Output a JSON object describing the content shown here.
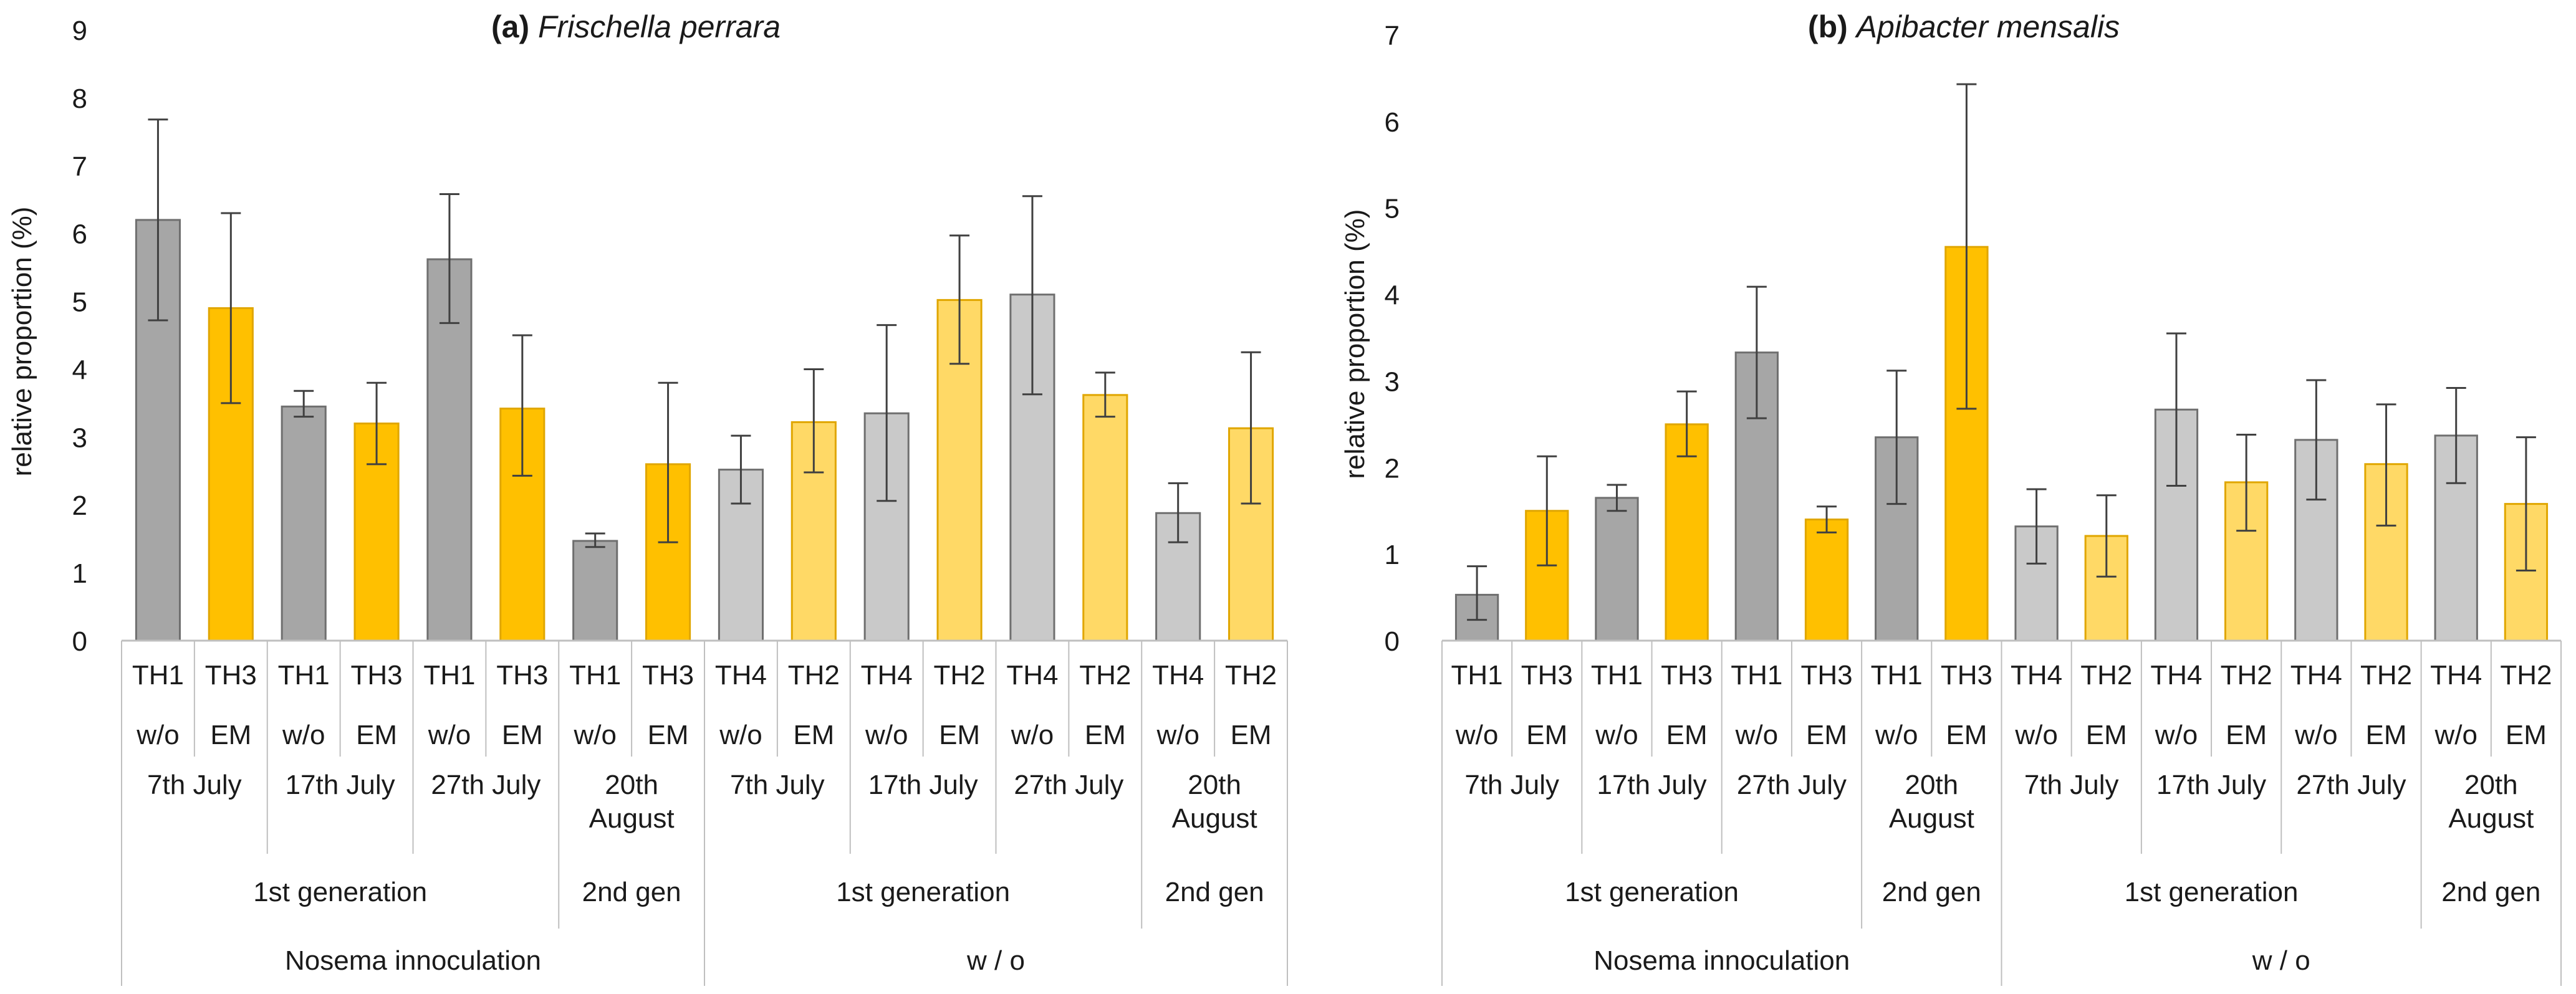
{
  "chart_data": [
    {
      "type": "bar",
      "panel_label": "(a)",
      "title": "Frischella perrara",
      "ylabel": "relative  proportion  (%)",
      "ylim": [
        0,
        9
      ],
      "yticks": [
        "0",
        "1",
        "2",
        "3",
        "4",
        "5",
        "6",
        "7",
        "8",
        "9"
      ],
      "grid": false,
      "levels": {
        "hive": [
          "TH1",
          "TH3",
          "TH1",
          "TH3",
          "TH1",
          "TH3",
          "TH1",
          "TH3",
          "TH4",
          "TH2",
          "TH4",
          "TH2",
          "TH4",
          "TH2",
          "TH4",
          "TH2"
        ],
        "treatment": [
          "w/o",
          "EM",
          "w/o",
          "EM",
          "w/o",
          "EM",
          "w/o",
          "EM",
          "w/o",
          "EM",
          "w/o",
          "EM",
          "w/o",
          "EM",
          "w/o",
          "EM"
        ],
        "date": [
          {
            "label": "7th July"
          },
          {
            "label": "17th July"
          },
          {
            "label": "27th July"
          },
          {
            "label": "20th\nAugust"
          },
          {
            "label": "7th July"
          },
          {
            "label": "17th July"
          },
          {
            "label": "27th July"
          },
          {
            "label": "20th\nAugust"
          }
        ],
        "generation": [
          {
            "label": "1st generation"
          },
          {
            "label": "2nd gen"
          },
          {
            "label": "1st generation"
          },
          {
            "label": "2nd gen"
          }
        ],
        "group": [
          {
            "label": "Nosema innoculation"
          },
          {
            "label": "w / o"
          }
        ]
      },
      "values": [
        6.2,
        4.9,
        3.45,
        3.2,
        5.62,
        3.42,
        1.47,
        2.6,
        2.52,
        3.22,
        3.35,
        5.02,
        5.1,
        3.62,
        1.88,
        3.13
      ],
      "err_low": [
        4.72,
        3.5,
        3.3,
        2.6,
        4.68,
        2.43,
        1.38,
        1.45,
        2.02,
        2.48,
        2.06,
        4.08,
        3.63,
        3.3,
        1.45,
        2.02
      ],
      "err_high": [
        7.68,
        6.3,
        3.68,
        3.8,
        6.58,
        4.5,
        1.58,
        3.8,
        3.02,
        4.0,
        4.65,
        5.97,
        6.55,
        3.95,
        2.32,
        4.25
      ]
    },
    {
      "type": "bar",
      "panel_label": "(b)",
      "title": "Apibacter mensalis",
      "ylabel": "relative  proportion  (%)",
      "ylim": [
        0,
        7
      ],
      "yticks": [
        "0",
        "1",
        "2",
        "3",
        "4",
        "5",
        "6",
        "7"
      ],
      "grid": false,
      "levels": {
        "hive": [
          "TH1",
          "TH3",
          "TH1",
          "TH3",
          "TH1",
          "TH3",
          "TH1",
          "TH3",
          "TH4",
          "TH2",
          "TH4",
          "TH2",
          "TH4",
          "TH2",
          "TH4",
          "TH2"
        ],
        "treatment": [
          "w/o",
          "EM",
          "w/o",
          "EM",
          "w/o",
          "EM",
          "w/o",
          "EM",
          "w/o",
          "EM",
          "w/o",
          "EM",
          "w/o",
          "EM",
          "w/o",
          "EM"
        ],
        "date": [
          {
            "label": "7th July"
          },
          {
            "label": "17th July"
          },
          {
            "label": "27th July"
          },
          {
            "label": "20th\nAugust"
          },
          {
            "label": "7th July"
          },
          {
            "label": "17th July"
          },
          {
            "label": "27th July"
          },
          {
            "label": "20th\nAugust"
          }
        ],
        "generation": [
          {
            "label": "1st generation"
          },
          {
            "label": "2nd gen"
          },
          {
            "label": "1st generation"
          },
          {
            "label": "2nd gen"
          }
        ],
        "group": [
          {
            "label": "Nosema innoculation"
          },
          {
            "label": "w / o"
          }
        ]
      },
      "values": [
        0.53,
        1.5,
        1.65,
        2.5,
        3.33,
        1.4,
        2.35,
        4.55,
        1.32,
        1.21,
        2.67,
        1.83,
        2.32,
        2.04,
        2.37,
        1.58
      ],
      "err_low": [
        0.24,
        0.87,
        1.5,
        2.13,
        2.57,
        1.25,
        1.58,
        2.68,
        0.89,
        0.74,
        1.79,
        1.27,
        1.63,
        1.33,
        1.82,
        0.81
      ],
      "err_high": [
        0.86,
        2.13,
        1.8,
        2.88,
        4.09,
        1.55,
        3.12,
        6.43,
        1.75,
        1.68,
        3.55,
        2.38,
        3.01,
        2.73,
        2.92,
        2.35
      ]
    }
  ],
  "colors": {
    "nosema_w_o": "#a6a6a6",
    "nosema_em": "#ffc000",
    "control_w_o": "#c9c9c9",
    "control_em": "#ffd966",
    "bar_stroke_grey": "#6f6f6f",
    "bar_stroke_gold": "#e0a600",
    "axis": "#bfbfbf",
    "error_bar": "#404040"
  }
}
